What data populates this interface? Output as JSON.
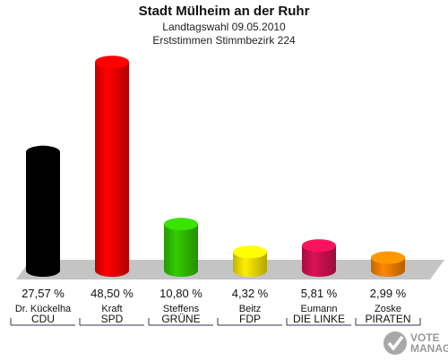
{
  "header": {
    "title": "Stadt Mülheim an der Ruhr",
    "subtitle1": "Landtagswahl 09.05.2010",
    "subtitle2": "Erststimmen Stimmbezirk 224"
  },
  "logo": {
    "line1": "VOTE",
    "line2": "MANAGER"
  },
  "chart_data": {
    "type": "bar",
    "title": "Stadt Mülheim an der Ruhr",
    "subtitle": "Landtagswahl 09.05.2010 / Erststimmen Stimmbezirk 224",
    "xlabel": "",
    "ylabel": "",
    "ylim": [
      0,
      50
    ],
    "grid": false,
    "categories": [
      "CDU",
      "SPD",
      "GRÜNE",
      "FDP",
      "DIE LINKE",
      "PIRATEN"
    ],
    "candidates": [
      "Dr. Kückelha",
      "Kraft",
      "Steffens",
      "Beitz",
      "Eumann",
      "Zoske"
    ],
    "values": [
      27.57,
      48.5,
      10.8,
      4.32,
      5.81,
      2.99
    ],
    "value_labels": [
      "27,57 %",
      "48,50 %",
      "10,80 %",
      "4,32 %",
      "5,81 %",
      "2,99 %"
    ],
    "colors": [
      "#000000",
      "#ff0000",
      "#33cc00",
      "#ffee00",
      "#dd1155",
      "#ff8800"
    ]
  }
}
